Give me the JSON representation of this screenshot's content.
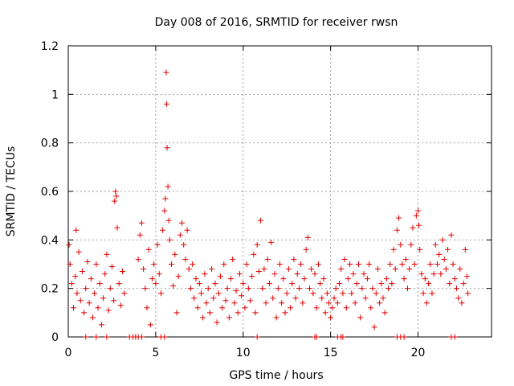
{
  "chart_data": {
    "type": "scatter",
    "title": "Day 008 of 2016, SRMTID for receiver rwsn",
    "xlabel": "GPS time / hours",
    "ylabel": "SRMTID / TECUs",
    "xlim": [
      0,
      24.2
    ],
    "ylim": [
      0,
      1.2
    ],
    "xticks": [
      "0",
      "5",
      "10",
      "15",
      "20"
    ],
    "xtick_values": [
      0,
      5,
      10,
      15,
      20
    ],
    "yticks": [
      "0",
      "0.2",
      "0.4",
      "0.6",
      "0.8",
      "1",
      "1.2"
    ],
    "ytick_values": [
      0,
      0.2,
      0.4,
      0.6,
      0.8,
      1.0,
      1.2
    ],
    "grid": true,
    "marker": "plus",
    "color": "#e00000",
    "series": [
      {
        "name": "SRMTID",
        "points": [
          [
            0.05,
            0.38
          ],
          [
            0.1,
            0.3
          ],
          [
            0.2,
            0.22
          ],
          [
            0.3,
            0.12
          ],
          [
            0.4,
            0.25
          ],
          [
            0.45,
            0.44
          ],
          [
            0.5,
            0.18
          ],
          [
            0.6,
            0.35
          ],
          [
            0.7,
            0.15
          ],
          [
            0.8,
            0.27
          ],
          [
            0.9,
            0.1
          ],
          [
            1.0,
            0.2
          ],
          [
            1.1,
            0.31
          ],
          [
            1.2,
            0.14
          ],
          [
            1.3,
            0.24
          ],
          [
            1.4,
            0.08
          ],
          [
            1.5,
            0.18
          ],
          [
            1.6,
            0.3
          ],
          [
            1.7,
            0.12
          ],
          [
            1.8,
            0.22
          ],
          [
            1.9,
            0.05
          ],
          [
            2.0,
            0.16
          ],
          [
            2.1,
            0.26
          ],
          [
            2.2,
            0.34
          ],
          [
            2.3,
            0.11
          ],
          [
            2.4,
            0.2
          ],
          [
            2.5,
            0.29
          ],
          [
            2.6,
            0.15
          ],
          [
            2.65,
            0.56
          ],
          [
            2.7,
            0.6
          ],
          [
            2.75,
            0.58
          ],
          [
            2.8,
            0.45
          ],
          [
            2.9,
            0.22
          ],
          [
            3.0,
            0.13
          ],
          [
            3.1,
            0.27
          ],
          [
            3.2,
            0.18
          ],
          [
            4.0,
            0.32
          ],
          [
            4.1,
            0.42
          ],
          [
            4.2,
            0.47
          ],
          [
            4.3,
            0.28
          ],
          [
            4.4,
            0.2
          ],
          [
            4.5,
            0.12
          ],
          [
            4.6,
            0.36
          ],
          [
            4.7,
            0.05
          ],
          [
            4.8,
            0.24
          ],
          [
            4.9,
            0.3
          ],
          [
            5.0,
            0.22
          ],
          [
            5.1,
            0.38
          ],
          [
            5.2,
            0.26
          ],
          [
            5.3,
            0.18
          ],
          [
            5.4,
            0.44
          ],
          [
            5.5,
            0.52
          ],
          [
            5.55,
            0.57
          ],
          [
            5.6,
            1.09
          ],
          [
            5.62,
            0.96
          ],
          [
            5.65,
            0.78
          ],
          [
            5.7,
            0.62
          ],
          [
            5.75,
            0.48
          ],
          [
            5.8,
            0.4
          ],
          [
            5.9,
            0.3
          ],
          [
            6.0,
            0.21
          ],
          [
            6.1,
            0.34
          ],
          [
            6.2,
            0.1
          ],
          [
            6.3,
            0.25
          ],
          [
            6.4,
            0.42
          ],
          [
            6.5,
            0.47
          ],
          [
            6.6,
            0.38
          ],
          [
            6.7,
            0.32
          ],
          [
            6.8,
            0.44
          ],
          [
            6.9,
            0.28
          ],
          [
            7.0,
            0.2
          ],
          [
            7.1,
            0.3
          ],
          [
            7.2,
            0.16
          ],
          [
            7.3,
            0.24
          ],
          [
            7.4,
            0.12
          ],
          [
            7.5,
            0.22
          ],
          [
            7.6,
            0.18
          ],
          [
            7.7,
            0.08
          ],
          [
            7.8,
            0.26
          ],
          [
            7.9,
            0.14
          ],
          [
            8.0,
            0.2
          ],
          [
            8.1,
            0.1
          ],
          [
            8.2,
            0.28
          ],
          [
            8.3,
            0.16
          ],
          [
            8.4,
            0.22
          ],
          [
            8.5,
            0.06
          ],
          [
            8.6,
            0.18
          ],
          [
            8.7,
            0.25
          ],
          [
            8.8,
            0.12
          ],
          [
            8.9,
            0.3
          ],
          [
            9.0,
            0.15
          ],
          [
            9.1,
            0.2
          ],
          [
            9.2,
            0.08
          ],
          [
            9.3,
            0.24
          ],
          [
            9.4,
            0.32
          ],
          [
            9.5,
            0.14
          ],
          [
            9.6,
            0.19
          ],
          [
            9.7,
            0.1
          ],
          [
            9.8,
            0.26
          ],
          [
            9.9,
            0.17
          ],
          [
            10.0,
            0.22
          ],
          [
            10.1,
            0.12
          ],
          [
            10.2,
            0.3
          ],
          [
            10.3,
            0.2
          ],
          [
            10.4,
            0.15
          ],
          [
            10.5,
            0.25
          ],
          [
            10.6,
            0.34
          ],
          [
            10.7,
            0.1
          ],
          [
            10.8,
            0.38
          ],
          [
            10.9,
            0.27
          ],
          [
            11.0,
            0.48
          ],
          [
            11.1,
            0.2
          ],
          [
            11.2,
            0.28
          ],
          [
            11.3,
            0.14
          ],
          [
            11.4,
            0.32
          ],
          [
            11.5,
            0.22
          ],
          [
            11.6,
            0.39
          ],
          [
            11.7,
            0.16
          ],
          [
            11.8,
            0.26
          ],
          [
            11.9,
            0.08
          ],
          [
            12.0,
            0.2
          ],
          [
            12.1,
            0.3
          ],
          [
            12.2,
            0.14
          ],
          [
            12.3,
            0.24
          ],
          [
            12.4,
            0.1
          ],
          [
            12.5,
            0.18
          ],
          [
            12.6,
            0.28
          ],
          [
            12.7,
            0.12
          ],
          [
            12.8,
            0.22
          ],
          [
            12.9,
            0.32
          ],
          [
            13.0,
            0.16
          ],
          [
            13.1,
            0.26
          ],
          [
            13.2,
            0.2
          ],
          [
            13.3,
            0.3
          ],
          [
            13.4,
            0.14
          ],
          [
            13.5,
            0.24
          ],
          [
            13.6,
            0.36
          ],
          [
            13.7,
            0.41
          ],
          [
            13.8,
            0.2
          ],
          [
            13.9,
            0.28
          ],
          [
            14.0,
            0.18
          ],
          [
            14.1,
            0.26
          ],
          [
            14.2,
            0.12
          ],
          [
            14.3,
            0.3
          ],
          [
            14.4,
            0.22
          ],
          [
            14.5,
            0.16
          ],
          [
            14.6,
            0.24
          ],
          [
            14.7,
            0.1
          ],
          [
            14.8,
            0.18
          ],
          [
            14.9,
            0.14
          ],
          [
            15.0,
            0.08
          ],
          [
            15.1,
            0.12
          ],
          [
            15.2,
            0.16
          ],
          [
            15.3,
            0.2
          ],
          [
            15.4,
            0.14
          ],
          [
            15.5,
            0.22
          ],
          [
            15.6,
            0.28
          ],
          [
            15.7,
            0.18
          ],
          [
            15.8,
            0.32
          ],
          [
            15.9,
            0.12
          ],
          [
            16.0,
            0.24
          ],
          [
            16.1,
            0.3
          ],
          [
            16.2,
            0.18
          ],
          [
            16.3,
            0.26
          ],
          [
            16.4,
            0.14
          ],
          [
            16.5,
            0.22
          ],
          [
            16.6,
            0.3
          ],
          [
            16.7,
            0.08
          ],
          [
            16.8,
            0.2
          ],
          [
            16.9,
            0.26
          ],
          [
            17.0,
            0.16
          ],
          [
            17.1,
            0.24
          ],
          [
            17.2,
            0.3
          ],
          [
            17.3,
            0.12
          ],
          [
            17.4,
            0.2
          ],
          [
            17.5,
            0.04
          ],
          [
            17.6,
            0.18
          ],
          [
            17.7,
            0.28
          ],
          [
            17.8,
            0.14
          ],
          [
            17.9,
            0.22
          ],
          [
            18.0,
            0.16
          ],
          [
            18.1,
            0.1
          ],
          [
            18.2,
            0.24
          ],
          [
            18.3,
            0.2
          ],
          [
            18.4,
            0.3
          ],
          [
            18.5,
            0.22
          ],
          [
            18.6,
            0.36
          ],
          [
            18.7,
            0.28
          ],
          [
            18.8,
            0.44
          ],
          [
            18.9,
            0.49
          ],
          [
            19.0,
            0.38
          ],
          [
            19.1,
            0.3
          ],
          [
            19.2,
            0.24
          ],
          [
            19.3,
            0.32
          ],
          [
            19.4,
            0.2
          ],
          [
            19.5,
            0.28
          ],
          [
            19.6,
            0.38
          ],
          [
            19.7,
            0.45
          ],
          [
            19.8,
            0.3
          ],
          [
            19.9,
            0.5
          ],
          [
            20.0,
            0.52
          ],
          [
            20.05,
            0.46
          ],
          [
            20.1,
            0.36
          ],
          [
            20.2,
            0.26
          ],
          [
            20.3,
            0.18
          ],
          [
            20.4,
            0.24
          ],
          [
            20.5,
            0.14
          ],
          [
            20.6,
            0.22
          ],
          [
            20.7,
            0.3
          ],
          [
            20.8,
            0.18
          ],
          [
            20.9,
            0.26
          ],
          [
            21.0,
            0.38
          ],
          [
            21.1,
            0.3
          ],
          [
            21.2,
            0.34
          ],
          [
            21.3,
            0.26
          ],
          [
            21.4,
            0.4
          ],
          [
            21.5,
            0.32
          ],
          [
            21.6,
            0.28
          ],
          [
            21.7,
            0.36
          ],
          [
            21.8,
            0.22
          ],
          [
            21.9,
            0.42
          ],
          [
            22.0,
            0.3
          ],
          [
            22.1,
            0.24
          ],
          [
            22.2,
            0.2
          ],
          [
            22.3,
            0.16
          ],
          [
            22.4,
            0.28
          ],
          [
            22.5,
            0.14
          ],
          [
            22.6,
            0.22
          ],
          [
            22.7,
            0.36
          ],
          [
            22.8,
            0.25
          ],
          [
            22.85,
            0.18
          ]
        ],
        "zero_points": [
          1.0,
          1.6,
          2.2,
          3.5,
          3.7,
          3.85,
          4.0,
          4.2,
          5.3,
          5.5,
          10.8,
          14.1,
          14.2,
          15.4,
          15.6,
          15.7,
          18.8,
          19.0,
          19.2,
          21.9,
          22.1
        ]
      }
    ]
  }
}
